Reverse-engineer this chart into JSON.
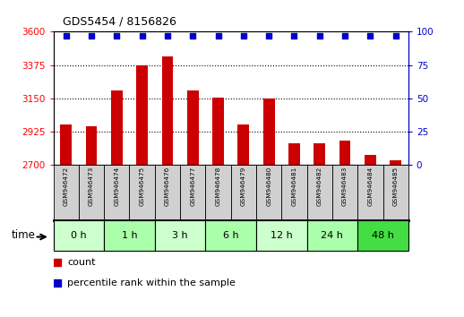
{
  "title": "GDS5454 / 8156826",
  "samples": [
    "GSM946472",
    "GSM946473",
    "GSM946474",
    "GSM946475",
    "GSM946476",
    "GSM946477",
    "GSM946478",
    "GSM946479",
    "GSM946480",
    "GSM946481",
    "GSM946482",
    "GSM946483",
    "GSM946484",
    "GSM946485"
  ],
  "counts": [
    2975,
    2958,
    3205,
    3370,
    3435,
    3205,
    3155,
    2975,
    3150,
    2845,
    2845,
    2865,
    2770,
    2730
  ],
  "percentile": [
    97,
    97,
    97,
    97,
    97,
    97,
    97,
    97,
    97,
    97,
    97,
    97,
    97,
    97
  ],
  "ylim_left": [
    2700,
    3600
  ],
  "ylim_right": [
    0,
    100
  ],
  "yticks_left": [
    2700,
    2925,
    3150,
    3375,
    3600
  ],
  "yticks_right": [
    0,
    25,
    50,
    75,
    100
  ],
  "bar_color": "#cc0000",
  "dot_color": "#0000cc",
  "time_groups": [
    {
      "label": "0 h",
      "start": 0,
      "end": 1,
      "color": "#ccffcc"
    },
    {
      "label": "1 h",
      "start": 2,
      "end": 3,
      "color": "#aaffaa"
    },
    {
      "label": "3 h",
      "start": 4,
      "end": 5,
      "color": "#ccffcc"
    },
    {
      "label": "6 h",
      "start": 6,
      "end": 7,
      "color": "#aaffaa"
    },
    {
      "label": "12 h",
      "start": 8,
      "end": 9,
      "color": "#ccffcc"
    },
    {
      "label": "24 h",
      "start": 10,
      "end": 11,
      "color": "#aaffaa"
    },
    {
      "label": "48 h",
      "start": 12,
      "end": 13,
      "color": "#44dd44"
    }
  ],
  "sample_bg_color": "#d0d0d0",
  "bg_color": "#ffffff",
  "legend_count_label": "count",
  "legend_pct_label": "percentile rank within the sample"
}
